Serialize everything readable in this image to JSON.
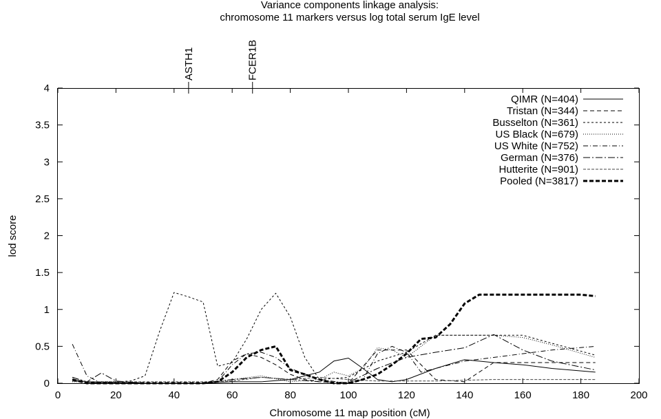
{
  "chart_data": {
    "type": "line",
    "title": "Variance components linkage analysis:",
    "subtitle": "chromosome 11 markers versus log total serum IgE level",
    "xlabel": "Chromosome 11 map position (cM)",
    "ylabel": "lod score",
    "xlim": [
      0,
      200
    ],
    "ylim": [
      0,
      4
    ],
    "xticks": [
      0,
      20,
      40,
      60,
      80,
      100,
      120,
      140,
      160,
      180,
      200
    ],
    "yticks": [
      0,
      0.5,
      1,
      1.5,
      2,
      2.5,
      3,
      3.5,
      4
    ],
    "xtick_labels": [
      "0",
      "20",
      "40",
      "60",
      "80",
      "100",
      "120",
      "140",
      "160",
      "180",
      "200"
    ],
    "ytick_labels": [
      "0",
      "0.5",
      "1",
      "1.5",
      "2",
      "2.5",
      "3",
      "3.5",
      "4"
    ],
    "grid": false,
    "legend_position": "top-right",
    "markers": [
      {
        "label": "ASTH1",
        "x": 45
      },
      {
        "label": "FCER1B",
        "x": 67
      }
    ],
    "series": [
      {
        "name": "QIMR (N=404)",
        "style": "solid",
        "x": [
          5,
          10,
          20,
          30,
          40,
          50,
          60,
          70,
          80,
          90,
          95,
          100,
          105,
          110,
          115,
          120,
          130,
          140,
          150,
          160,
          170,
          185
        ],
        "y": [
          0.05,
          0.02,
          0.01,
          0,
          0,
          0,
          0.02,
          0.02,
          0.05,
          0.15,
          0.3,
          0.34,
          0.2,
          0.05,
          0.02,
          0.05,
          0.2,
          0.32,
          0.28,
          0.25,
          0.2,
          0.15
        ]
      },
      {
        "name": "Tristan (N=344)",
        "style": "dash",
        "x": [
          5,
          10,
          15,
          20,
          30,
          40,
          50,
          55,
          60,
          65,
          70,
          75,
          80,
          85,
          90,
          100,
          110,
          120,
          130,
          140,
          150,
          160,
          185
        ],
        "y": [
          0.03,
          0.01,
          0,
          0,
          0,
          0,
          0,
          0.05,
          0.3,
          0.4,
          0.35,
          0.25,
          0.12,
          0.05,
          0.02,
          0,
          0.45,
          0.45,
          0.05,
          0.02,
          0.28,
          0.28,
          0.28
        ]
      },
      {
        "name": "Busselton (N=361)",
        "style": "smalldash",
        "x": [
          5,
          10,
          20,
          25,
          30,
          35,
          40,
          45,
          50,
          55,
          60,
          65,
          70,
          75,
          80,
          85,
          90,
          100,
          110,
          120,
          130,
          140,
          160,
          185
        ],
        "y": [
          0.08,
          0.02,
          0.02,
          0.03,
          0.1,
          0.7,
          1.23,
          1.17,
          1.1,
          0.23,
          0.28,
          0.6,
          1.0,
          1.22,
          0.9,
          0.35,
          0.05,
          0.08,
          0.3,
          0.42,
          0.65,
          0.65,
          0.65,
          0.38
        ]
      },
      {
        "name": "US Black (N=679)",
        "style": "dot",
        "x": [
          5,
          10,
          20,
          30,
          40,
          50,
          60,
          70,
          80,
          90,
          95,
          100,
          105,
          110,
          115,
          120,
          125,
          130,
          140,
          150,
          160,
          170,
          185
        ],
        "y": [
          0.02,
          0.02,
          0.02,
          0,
          0,
          0,
          0.05,
          0.1,
          0.02,
          0.05,
          0.15,
          0.1,
          0.2,
          0.48,
          0.45,
          0.35,
          0.5,
          0.65,
          0.65,
          0.65,
          0.62,
          0.52,
          0.35
        ]
      },
      {
        "name": "US White (N=752)",
        "style": "dashdot",
        "x": [
          5,
          10,
          15,
          20,
          30,
          40,
          50,
          55,
          60,
          65,
          70,
          75,
          80,
          90,
          100,
          105,
          110,
          115,
          120,
          125,
          130,
          140,
          150,
          160,
          170,
          185
        ],
        "y": [
          0.53,
          0.1,
          0,
          0.01,
          0,
          0,
          0,
          0.02,
          0.25,
          0.4,
          0.42,
          0.35,
          0.2,
          0.05,
          0,
          0.05,
          0.4,
          0.5,
          0.42,
          0.15,
          0.2,
          0.3,
          0.35,
          0.4,
          0.45,
          0.5
        ]
      },
      {
        "name": "German (N=376)",
        "style": "dashdotlong",
        "x": [
          5,
          10,
          15,
          20,
          30,
          40,
          50,
          60,
          70,
          80,
          90,
          100,
          110,
          120,
          130,
          140,
          150,
          160,
          170,
          185
        ],
        "y": [
          0.08,
          0.02,
          0.14,
          0.03,
          0,
          0,
          0,
          0.05,
          0.08,
          0.05,
          0.02,
          0.01,
          0.2,
          0.35,
          0.42,
          0.48,
          0.66,
          0.45,
          0.3,
          0.18
        ]
      },
      {
        "name": "Hutterite (N=901)",
        "style": "densedash",
        "x": [
          5,
          10,
          20,
          30,
          40,
          50,
          60,
          70,
          80,
          90,
          100,
          110,
          120,
          130,
          140,
          150,
          160,
          170,
          185
        ],
        "y": [
          0.03,
          0.02,
          0.02,
          0.02,
          0.02,
          0.02,
          0.03,
          0.08,
          0.05,
          0.08,
          0.05,
          0.03,
          0.03,
          0.03,
          0.04,
          0.05,
          0.05,
          0.05,
          0.05
        ]
      },
      {
        "name": "Pooled (N=3817)",
        "style": "bold",
        "x": [
          5,
          10,
          20,
          30,
          40,
          50,
          55,
          60,
          65,
          70,
          75,
          80,
          85,
          90,
          95,
          100,
          105,
          110,
          115,
          120,
          125,
          130,
          135,
          140,
          145,
          150,
          160,
          170,
          180,
          185
        ],
        "y": [
          0.05,
          0,
          0,
          0,
          0,
          0,
          0.02,
          0.15,
          0.35,
          0.45,
          0.5,
          0.18,
          0.12,
          0.05,
          0,
          0,
          0.05,
          0.12,
          0.25,
          0.4,
          0.6,
          0.62,
          0.8,
          1.08,
          1.2,
          1.2,
          1.2,
          1.2,
          1.2,
          1.18
        ]
      }
    ]
  }
}
